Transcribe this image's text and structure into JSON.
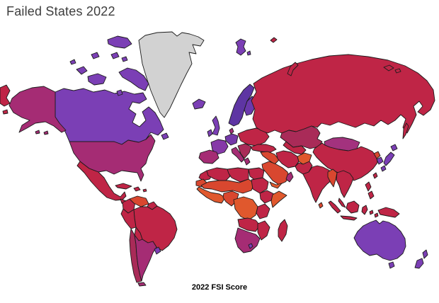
{
  "title": "Failed States 2022",
  "caption": "2022 FSI Score",
  "palette": {
    "no_data": "#D2D2D2",
    "deep_purple": "#5E35A3",
    "purple": "#7B3FB5",
    "violet": "#8639A8",
    "magenta": "#A52C74",
    "dark_magenta_red": "#A92B58",
    "crimson": "#BF2546",
    "red_orange": "#D9472F",
    "orange": "#E0582D"
  },
  "map": {
    "ocean_color": "#FFFFFF",
    "border_color": "#1b1b1b",
    "regions": [
      {
        "id": "greenland",
        "name": "Greenland (no data)",
        "color": "#D2D2D2"
      },
      {
        "id": "canada",
        "name": "Canada",
        "color": "#7B3FB5"
      },
      {
        "id": "arctic-islands",
        "name": "Canada Arctic Islands",
        "color": "#7B3FB5"
      },
      {
        "id": "alaska",
        "name": "United States (Alaska)",
        "color": "#A52C74"
      },
      {
        "id": "usa",
        "name": "United States",
        "color": "#A52C74"
      },
      {
        "id": "chukotka",
        "name": "Russia (Chukotka)",
        "color": "#BF2546"
      },
      {
        "id": "mexico",
        "name": "Mexico",
        "color": "#BF2546"
      },
      {
        "id": "central-america",
        "name": "Central America",
        "color": "#BF2546"
      },
      {
        "id": "cuba",
        "name": "Cuba",
        "color": "#BF2546"
      },
      {
        "id": "hispaniola",
        "name": "Hispaniola",
        "color": "#BF2546"
      },
      {
        "id": "colombia",
        "name": "Colombia",
        "color": "#BF2546"
      },
      {
        "id": "venezuela",
        "name": "Venezuela",
        "color": "#D9472F"
      },
      {
        "id": "guyanas",
        "name": "Guyanas",
        "color": "#BF2546"
      },
      {
        "id": "brazil",
        "name": "Brazil",
        "color": "#BF2546"
      },
      {
        "id": "peru",
        "name": "Peru",
        "color": "#BF2546"
      },
      {
        "id": "bolivia",
        "name": "Bolivia",
        "color": "#BF2546"
      },
      {
        "id": "chile",
        "name": "Chile",
        "color": "#A92B58"
      },
      {
        "id": "argentina",
        "name": "Argentina",
        "color": "#A52C74"
      },
      {
        "id": "uruguay",
        "name": "Uruguay",
        "color": "#7B3FB5"
      },
      {
        "id": "tierra-del-fuego",
        "name": "Tierra del Fuego",
        "color": "#A52C74"
      },
      {
        "id": "iceland",
        "name": "Iceland",
        "color": "#7B3FB5"
      },
      {
        "id": "uk",
        "name": "United Kingdom",
        "color": "#7B3FB5"
      },
      {
        "id": "ireland",
        "name": "Ireland",
        "color": "#7B3FB5"
      },
      {
        "id": "scandinavia",
        "name": "Norway and Sweden",
        "color": "#5E35A3"
      },
      {
        "id": "finland",
        "name": "Finland",
        "color": "#6B39AC"
      },
      {
        "id": "denmark",
        "name": "Denmark",
        "color": "#A52C74"
      },
      {
        "id": "france",
        "name": "France",
        "color": "#8639A8"
      },
      {
        "id": "germany",
        "name": "Germany",
        "color": "#7438A8"
      },
      {
        "id": "iberia",
        "name": "Spain and Portugal",
        "color": "#A52C74"
      },
      {
        "id": "italy",
        "name": "Italy",
        "color": "#A52C74"
      },
      {
        "id": "east-europe",
        "name": "Eastern Europe",
        "color": "#BF2546"
      },
      {
        "id": "balkans",
        "name": "Balkans",
        "color": "#A92B58"
      },
      {
        "id": "greece",
        "name": "Greece",
        "color": "#A52C74"
      },
      {
        "id": "svalbard",
        "name": "Svalbard",
        "color": "#7B3FB5"
      },
      {
        "id": "russia",
        "name": "Russia",
        "color": "#BF2546"
      },
      {
        "id": "novaya-zemlya",
        "name": "Novaya Zemlya",
        "color": "#BF2546"
      },
      {
        "id": "russian-arctic",
        "name": "Russian Arctic Islands",
        "color": "#BF2546"
      },
      {
        "id": "sakhalin",
        "name": "Sakhalin",
        "color": "#BF2546"
      },
      {
        "id": "kazakhstan",
        "name": "Kazakhstan",
        "color": "#A92B58"
      },
      {
        "id": "central-asia",
        "name": "Central Asia",
        "color": "#BF2546"
      },
      {
        "id": "mongolia",
        "name": "Mongolia",
        "color": "#A3327E"
      },
      {
        "id": "china",
        "name": "China",
        "color": "#BF2546"
      },
      {
        "id": "japan",
        "name": "Japan",
        "color": "#7B3FB5"
      },
      {
        "id": "north-korea",
        "name": "North Korea",
        "color": "#D9472F"
      },
      {
        "id": "south-korea",
        "name": "South Korea",
        "color": "#7B3FB5"
      },
      {
        "id": "taiwan",
        "name": "Taiwan",
        "color": "#BF2546"
      },
      {
        "id": "turkey",
        "name": "Turkey",
        "color": "#BF2546"
      },
      {
        "id": "syria-iraq",
        "name": "Syria and Iraq",
        "color": "#D9472F"
      },
      {
        "id": "iran",
        "name": "Iran",
        "color": "#BF2546"
      },
      {
        "id": "afghanistan",
        "name": "Afghanistan",
        "color": "#E0582D"
      },
      {
        "id": "pakistan",
        "name": "Pakistan",
        "color": "#BF2546"
      },
      {
        "id": "india",
        "name": "India",
        "color": "#BF2546"
      },
      {
        "id": "sri-lanka",
        "name": "Sri Lanka",
        "color": "#D9472F"
      },
      {
        "id": "arabia",
        "name": "Saudi Arabia",
        "color": "#D9472F"
      },
      {
        "id": "yemen",
        "name": "Yemen",
        "color": "#E0582D"
      },
      {
        "id": "oman",
        "name": "Oman",
        "color": "#A52C74"
      },
      {
        "id": "myanmar",
        "name": "Myanmar",
        "color": "#D9472F"
      },
      {
        "id": "indochina",
        "name": "Indochina",
        "color": "#BF2546"
      },
      {
        "id": "malaysia",
        "name": "Malaysia",
        "color": "#BF2546"
      },
      {
        "id": "indonesia",
        "name": "Indonesia",
        "color": "#BF2546"
      },
      {
        "id": "philippines",
        "name": "Philippines",
        "color": "#BF2546"
      },
      {
        "id": "new-guinea",
        "name": "New Guinea",
        "color": "#BF2546"
      },
      {
        "id": "australia",
        "name": "Australia",
        "color": "#7B3FB5"
      },
      {
        "id": "tasmania",
        "name": "Tasmania",
        "color": "#7B3FB5"
      },
      {
        "id": "new-zealand",
        "name": "New Zealand",
        "color": "#7B3FB5"
      },
      {
        "id": "morocco",
        "name": "Morocco",
        "color": "#BF2546"
      },
      {
        "id": "western-sahara",
        "name": "Western Sahara",
        "color": "#D9472F"
      },
      {
        "id": "algeria",
        "name": "Algeria",
        "color": "#BF2546"
      },
      {
        "id": "libya",
        "name": "Libya",
        "color": "#BF2546"
      },
      {
        "id": "egypt",
        "name": "Egypt",
        "color": "#BF2546"
      },
      {
        "id": "sahel",
        "name": "Sahel",
        "color": "#D9472F"
      },
      {
        "id": "sudan",
        "name": "Sudan",
        "color": "#BF2546"
      },
      {
        "id": "west-africa",
        "name": "West Africa",
        "color": "#E0582D"
      },
      {
        "id": "nigeria",
        "name": "Nigeria and Cameroon",
        "color": "#D9472F"
      },
      {
        "id": "congo",
        "name": "Central Africa",
        "color": "#E0582D"
      },
      {
        "id": "ethiopia",
        "name": "Ethiopia",
        "color": "#BF2546"
      },
      {
        "id": "somalia",
        "name": "Somalia",
        "color": "#E0582D"
      },
      {
        "id": "kenya-tanzania",
        "name": "Kenya and Tanzania",
        "color": "#BF2546"
      },
      {
        "id": "angola-zambia",
        "name": "Angola and Zambia",
        "color": "#BF2546"
      },
      {
        "id": "mozambique",
        "name": "Mozambique and Zimbabwe",
        "color": "#BF2546"
      },
      {
        "id": "southern-africa",
        "name": "Southern Africa",
        "color": "#A52C74"
      },
      {
        "id": "lesotho",
        "name": "Lesotho",
        "color": "#7B3FB5"
      },
      {
        "id": "madagascar",
        "name": "Madagascar",
        "color": "#BF2546"
      }
    ]
  }
}
